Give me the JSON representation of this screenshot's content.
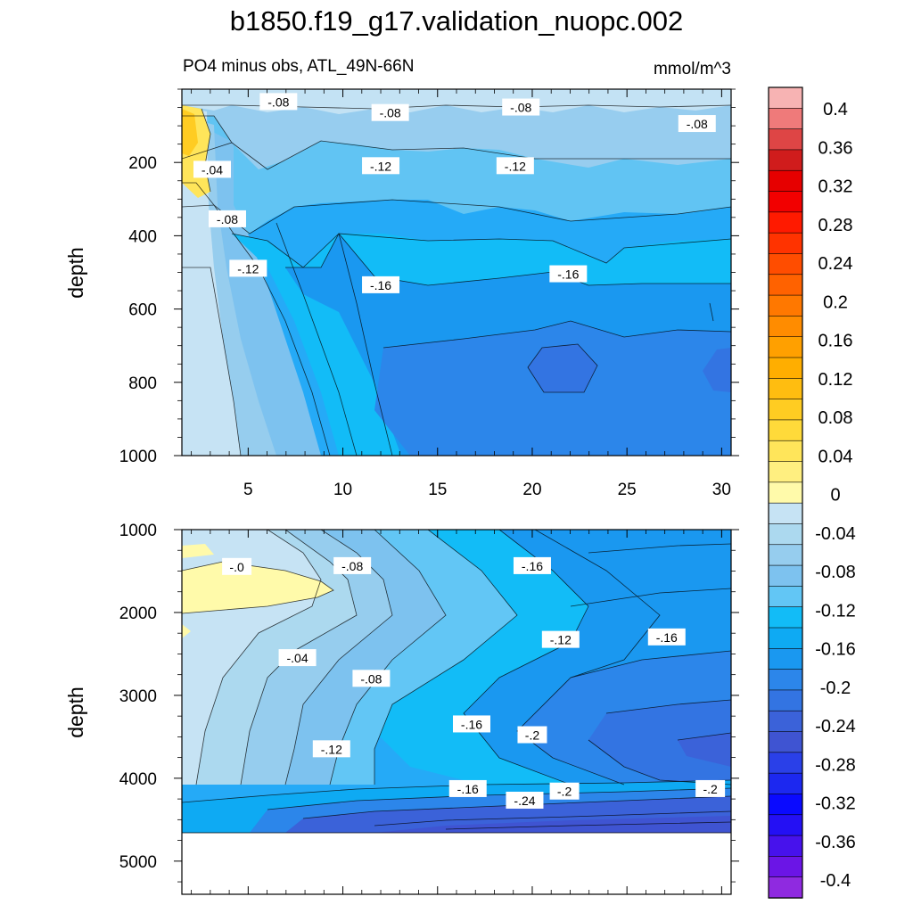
{
  "figure": {
    "title": "b1850.f19_g17.validation_nuopc.002",
    "subtitle_left": "PO4 minus obs, ATL_49N-66N",
    "units": "mmol/m^3"
  },
  "chart_data": [
    {
      "type": "heatmap",
      "panel": "upper",
      "ylabel": "depth",
      "xlim": [
        1.5,
        30.5
      ],
      "ylim": [
        1000,
        0
      ],
      "xticks": [
        5,
        10,
        15,
        20,
        25,
        30
      ],
      "yticks": [
        200,
        400,
        600,
        800,
        1000
      ],
      "contour_interval": 0.02,
      "contour_labels": [
        {
          "text": "-.08",
          "x": 6.6,
          "y": 35
        },
        {
          "text": "-.08",
          "x": 12.5,
          "y": 65
        },
        {
          "text": "-.08",
          "x": 19.4,
          "y": 50
        },
        {
          "text": "-.08",
          "x": 28.7,
          "y": 95
        },
        {
          "text": "-.12",
          "x": 12.0,
          "y": 210
        },
        {
          "text": "-.12",
          "x": 19.1,
          "y": 210
        },
        {
          "text": "-.04",
          "x": 3.1,
          "y": 220
        },
        {
          "text": "-.08",
          "x": 3.9,
          "y": 355
        },
        {
          "text": "-.12",
          "x": 5.0,
          "y": 490
        },
        {
          "text": "-.16",
          "x": 12.0,
          "y": 535
        },
        {
          "text": "-.16",
          "x": 21.9,
          "y": 505
        }
      ],
      "zones": [
        {
          "value": -0.04,
          "x": [
            1.5,
            3.8
          ],
          "y": [
            0,
            1000
          ]
        },
        {
          "value": 0.04,
          "x": [
            1.5,
            3.0
          ],
          "y": [
            50,
            250
          ]
        },
        {
          "value": -0.14,
          "x": [
            9.0,
            30.5
          ],
          "y": [
            250,
            1000
          ]
        },
        {
          "value": -0.18,
          "x": [
            12.0,
            30.5
          ],
          "y": [
            650,
            850
          ]
        }
      ]
    },
    {
      "type": "heatmap",
      "panel": "lower",
      "ylabel": "depth",
      "xlim": [
        1.5,
        30.5
      ],
      "ylim": [
        5400,
        1000
      ],
      "yticks": [
        1000,
        2000,
        3000,
        4000,
        5000
      ],
      "missing_below_depth": 4600,
      "contour_interval": 0.02,
      "contour_labels": [
        {
          "text": "-.0",
          "x": 4.4,
          "y": 1450
        },
        {
          "text": "-.08",
          "x": 10.5,
          "y": 1440
        },
        {
          "text": "-.16",
          "x": 20.0,
          "y": 1440
        },
        {
          "text": "-.12",
          "x": 21.5,
          "y": 2330
        },
        {
          "text": "-.16",
          "x": 27.1,
          "y": 2300
        },
        {
          "text": "-.04",
          "x": 7.6,
          "y": 2550
        },
        {
          "text": "-.08",
          "x": 11.5,
          "y": 2800
        },
        {
          "text": "-.16",
          "x": 16.8,
          "y": 3350
        },
        {
          "text": "-.2",
          "x": 20.0,
          "y": 3480
        },
        {
          "text": "-.12",
          "x": 9.4,
          "y": 3650
        },
        {
          "text": "-.16",
          "x": 16.6,
          "y": 4130
        },
        {
          "text": "-.2",
          "x": 21.7,
          "y": 4160
        },
        {
          "text": "-.24",
          "x": 19.6,
          "y": 4270
        },
        {
          "text": "-.2",
          "x": 29.4,
          "y": 4130
        }
      ],
      "zones": [
        {
          "value": -0.02,
          "x": [
            1.5,
            10.0
          ],
          "y": [
            1000,
            4600
          ]
        },
        {
          "value": 0.02,
          "x": [
            1.5,
            9.0
          ],
          "y": [
            1300,
            1900
          ]
        },
        {
          "value": -0.14,
          "x": [
            12.0,
            30.5
          ],
          "y": [
            1000,
            4100
          ]
        },
        {
          "value": -0.22,
          "x": [
            19.0,
            30.5
          ],
          "y": [
            3300,
            4000
          ]
        },
        {
          "value": -0.26,
          "x": [
            10.0,
            30.5
          ],
          "y": [
            4300,
            4600
          ]
        }
      ]
    }
  ],
  "colorbar": {
    "labels": [
      "0.4",
      "0.36",
      "0.32",
      "0.28",
      "0.24",
      "0.2",
      "0.16",
      "0.12",
      "0.08",
      "0.04",
      "0",
      "-0.04",
      "-0.08",
      "-0.12",
      "-0.16",
      "-0.2",
      "-0.24",
      "-0.28",
      "-0.32",
      "-0.36",
      "-0.4"
    ],
    "colors": [
      "#f7b3b3",
      "#ef7a7a",
      "#de4545",
      "#d01c1c",
      "#e60000",
      "#f20000",
      "#ff1a00",
      "#ff3300",
      "#ff4d00",
      "#ff6200",
      "#ff7800",
      "#ff8c00",
      "#ffa000",
      "#ffae00",
      "#ffbd10",
      "#ffcc22",
      "#ffda3a",
      "#ffe55a",
      "#ffef80",
      "#fffaaa",
      "#c6e3f4",
      "#acd9ef",
      "#96cdee",
      "#7dc2ef",
      "#62c6f5",
      "#12bcf7",
      "#0eaaf3",
      "#1a98f0",
      "#2c86ea",
      "#3374e2",
      "#3b62d9",
      "#3f54d2",
      "#2a40e8",
      "#1c28f0",
      "#0a0aff",
      "#2410f4",
      "#4712ec",
      "#6b15e6",
      "#8f2ae0"
    ]
  }
}
